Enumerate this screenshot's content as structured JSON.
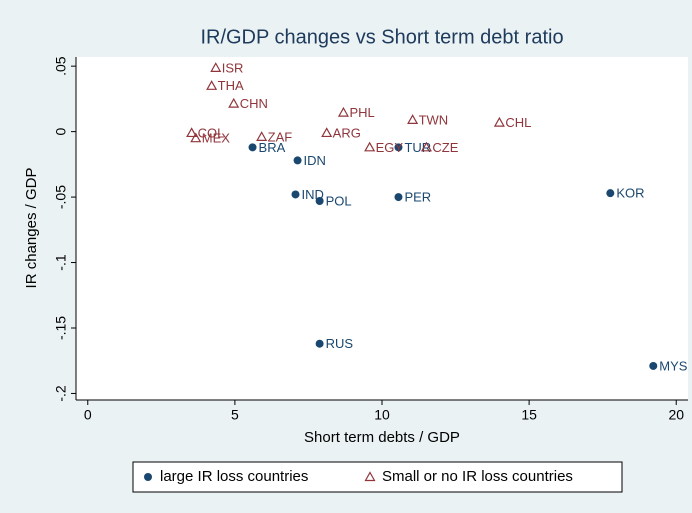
{
  "chart_data": {
    "type": "scatter",
    "title": "IR/GDP changes vs Short term debt ratio",
    "x_label": "Short term debts / GDP",
    "y_label": "IR changes / GDP",
    "xlim": [
      -0.4,
      20.4
    ],
    "ylim": [
      -0.205,
      0.057
    ],
    "xticks": [
      0,
      5,
      10,
      15,
      20
    ],
    "yticks": [
      {
        "value": 0.05,
        "label": ".05"
      },
      0,
      {
        "value": -0.05,
        "label": "-.05"
      },
      {
        "value": -0.1,
        "label": "-.1"
      },
      {
        "value": -0.15,
        "label": "-.15"
      },
      {
        "value": -0.2,
        "label": "-.2"
      }
    ],
    "grid": false,
    "series": [
      {
        "name": "large IR loss countries",
        "color": "#1a476f",
        "marker": "circle",
        "labels": [
          "BRA",
          "IDN",
          "IND",
          "POL",
          "PER",
          "KOR",
          "RUS",
          "MYS",
          "TUR"
        ],
        "x": [
          5.6,
          7.13,
          7.06,
          7.88,
          10.56,
          17.76,
          7.88,
          19.22,
          10.56
        ],
        "values": [
          -0.012,
          -0.022,
          -0.048,
          -0.053,
          -0.05,
          -0.047,
          -0.162,
          -0.179,
          -0.012
        ]
      },
      {
        "name": "Small or no IR loss countries",
        "color": "#90353b",
        "marker": "triangle",
        "labels": [
          "ISR",
          "THA",
          "CHN",
          "PHL",
          "TWN",
          "CHL",
          "COL",
          "MEX",
          "ZAF",
          "ARG",
          "EGY",
          "CZE"
        ],
        "x": [
          4.35,
          4.21,
          4.96,
          8.69,
          11.04,
          13.99,
          3.53,
          3.67,
          5.91,
          8.12,
          9.58,
          11.51
        ],
        "values": [
          0.0487,
          0.035,
          0.0214,
          0.0145,
          0.009,
          0.0069,
          -0.001,
          -0.005,
          -0.004,
          -0.001,
          -0.012,
          -0.012
        ]
      }
    ],
    "legend": "bottom"
  }
}
